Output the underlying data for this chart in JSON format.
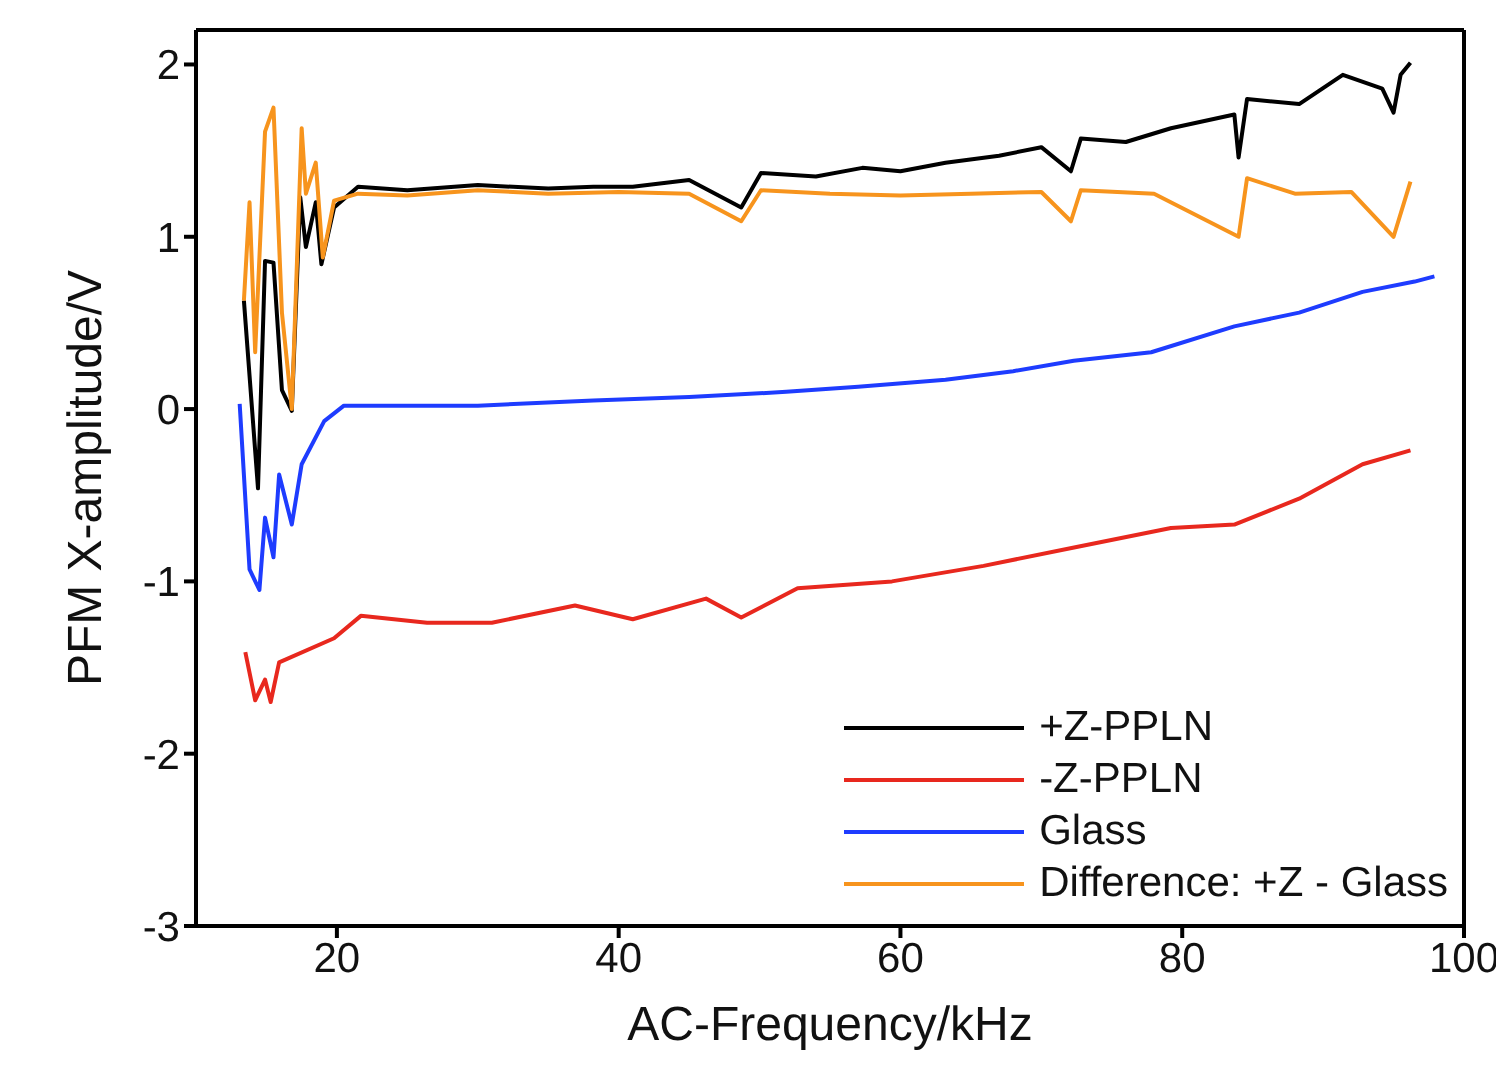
{
  "chart_data": {
    "type": "line",
    "xlabel": "AC-Frequency/kHz",
    "ylabel": "PFM X-amplitude/V",
    "xlim": [
      10,
      100
    ],
    "xticks": [
      20,
      40,
      60,
      80,
      100
    ],
    "ylim": [
      -3,
      2.2
    ],
    "yticks": [
      -3,
      -2,
      -1,
      0,
      1,
      2
    ],
    "grid": false,
    "legend": "bottom right",
    "marker": "none",
    "line_style": "solid",
    "series": [
      {
        "name": "+Z-PPLN",
        "color": "#000000",
        "x": [
          13.4,
          14.4,
          14.9,
          15.5,
          16.1,
          16.8,
          17.4,
          17.8,
          18.5,
          18.9,
          19.8,
          21.5,
          25,
          30,
          35,
          38.2,
          41,
          45,
          48.7,
          50.1,
          54,
          57.3,
          60,
          63.2,
          67,
          70,
          72.1,
          72.8,
          76,
          79.2,
          83.7,
          84,
          84.6,
          88.3,
          91.4,
          94.2,
          95,
          95.5,
          96.2
        ],
        "values": [
          0.63,
          -0.46,
          0.86,
          0.85,
          0.11,
          -0.01,
          1.23,
          0.94,
          1.2,
          0.84,
          1.17,
          1.29,
          1.27,
          1.3,
          1.28,
          1.29,
          1.29,
          1.33,
          1.17,
          1.37,
          1.35,
          1.4,
          1.38,
          1.43,
          1.47,
          1.52,
          1.38,
          1.57,
          1.55,
          1.63,
          1.71,
          1.46,
          1.8,
          1.77,
          1.94,
          1.86,
          1.72,
          1.94,
          2.01
        ]
      },
      {
        "name": "-Z-PPLN",
        "color": "#e8281e",
        "x": [
          13.5,
          14.2,
          14.9,
          15.3,
          15.9,
          19.8,
          21.7,
          26.4,
          31,
          36.9,
          41,
          46.2,
          48.7,
          52.7,
          59.4,
          65.9,
          72.5,
          79.2,
          83.7,
          88.3,
          92.8,
          96.2
        ],
        "values": [
          -1.41,
          -1.69,
          -1.57,
          -1.7,
          -1.47,
          -1.33,
          -1.2,
          -1.24,
          -1.24,
          -1.14,
          -1.22,
          -1.1,
          -1.21,
          -1.04,
          -1.0,
          -0.91,
          -0.8,
          -0.69,
          -0.67,
          -0.52,
          -0.32,
          -0.24
        ]
      },
      {
        "name": "Glass",
        "color": "#1e3cff",
        "x": [
          13.1,
          13.8,
          14.5,
          14.9,
          15.5,
          15.9,
          16.8,
          17.5,
          19.1,
          20.5,
          30,
          38.2,
          45,
          51.9,
          57,
          63.2,
          68,
          72.3,
          77.8,
          83.7,
          88.3,
          92.8,
          96.5,
          97.9
        ],
        "values": [
          0.03,
          -0.93,
          -1.05,
          -0.63,
          -0.86,
          -0.38,
          -0.67,
          -0.32,
          -0.07,
          0.02,
          0.02,
          0.05,
          0.07,
          0.1,
          0.13,
          0.17,
          0.22,
          0.28,
          0.33,
          0.48,
          0.56,
          0.68,
          0.74,
          0.77
        ]
      },
      {
        "name": "Difference: +Z - Glass",
        "color": "#f7941d",
        "x": [
          13.4,
          13.8,
          14.2,
          14.9,
          15.5,
          16.1,
          16.8,
          17.5,
          17.8,
          18.5,
          19.0,
          19.8,
          21.5,
          25,
          30,
          35,
          40,
          45,
          48.7,
          50.1,
          55,
          60,
          65,
          70,
          72.1,
          72.8,
          78,
          84,
          84.6,
          88,
          92,
          95,
          96.2
        ],
        "values": [
          0.63,
          1.2,
          0.33,
          1.61,
          1.75,
          0.56,
          0.0,
          1.63,
          1.25,
          1.43,
          0.88,
          1.21,
          1.25,
          1.24,
          1.27,
          1.25,
          1.26,
          1.25,
          1.09,
          1.27,
          1.25,
          1.24,
          1.25,
          1.26,
          1.09,
          1.27,
          1.25,
          1.0,
          1.34,
          1.25,
          1.26,
          1.0,
          1.32
        ]
      }
    ]
  }
}
